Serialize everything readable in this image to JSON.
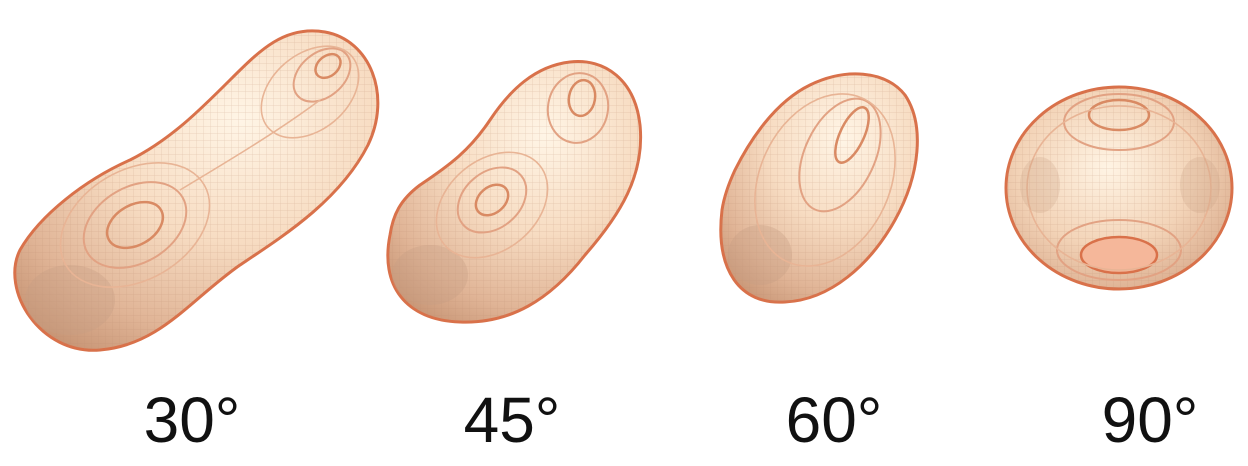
{
  "colors": {
    "surface_light": "#fff3e4",
    "surface_mid": "#f2c8a8",
    "surface_shadow": "#c8a088",
    "rim": "#d9714a",
    "label": "#111111"
  },
  "shapes": [
    {
      "label": "30°"
    },
    {
      "label": "45°"
    },
    {
      "label": "60°"
    },
    {
      "label": "90°"
    }
  ]
}
